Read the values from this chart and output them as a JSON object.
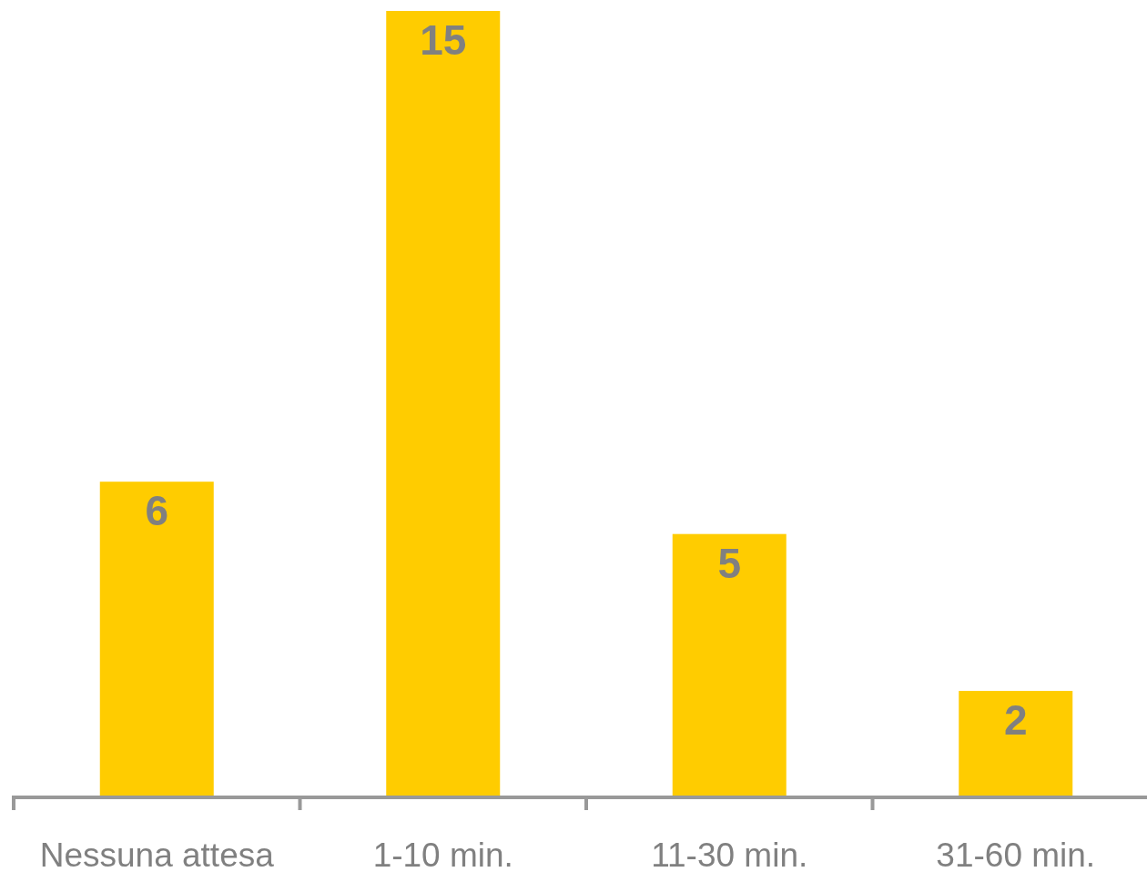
{
  "chart_data": {
    "type": "bar",
    "categories": [
      "Nessuna attesa",
      "1-10 min.",
      "11-30 min.",
      "31-60 min."
    ],
    "values": [
      6,
      15,
      5,
      2
    ],
    "color": "#ffcc00",
    "data_labels": true
  }
}
